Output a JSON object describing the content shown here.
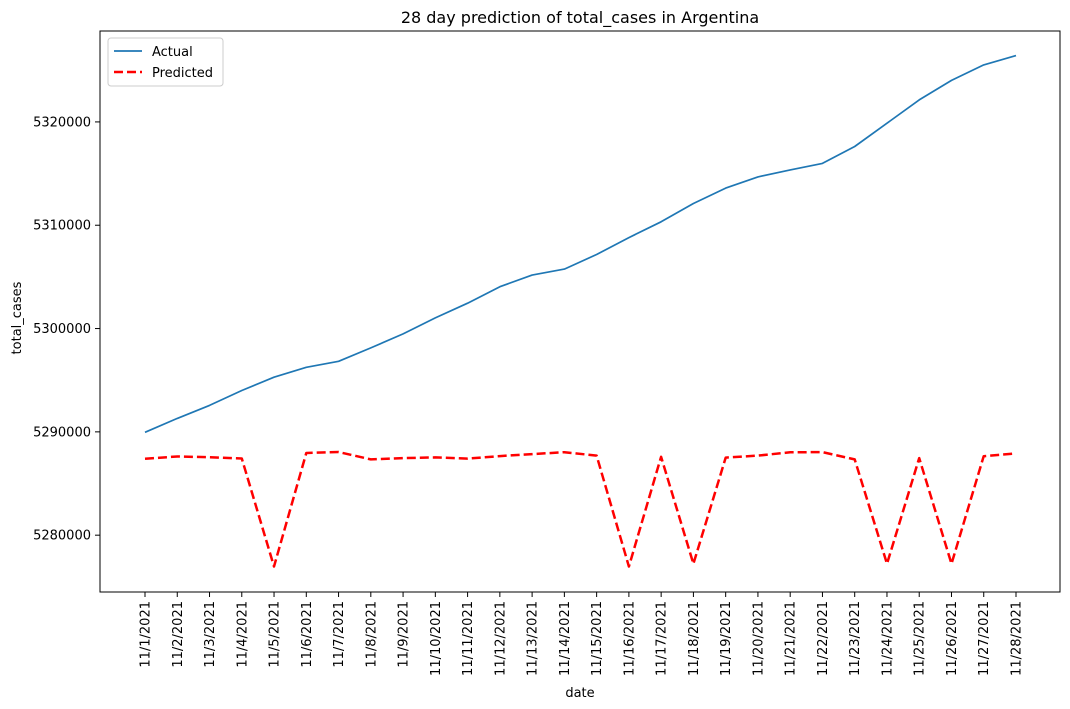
{
  "chart_data": {
    "type": "line",
    "title": "28 day prediction of total_cases in Argentina",
    "xlabel": "date",
    "ylabel": "total_cases",
    "x": [
      "11/1/2021",
      "11/2/2021",
      "11/3/2021",
      "11/4/2021",
      "11/5/2021",
      "11/6/2021",
      "11/7/2021",
      "11/8/2021",
      "11/9/2021",
      "11/10/2021",
      "11/11/2021",
      "11/12/2021",
      "11/13/2021",
      "11/14/2021",
      "11/15/2021",
      "11/16/2021",
      "11/17/2021",
      "11/18/2021",
      "11/19/2021",
      "11/20/2021",
      "11/21/2021",
      "11/22/2021",
      "11/23/2021",
      "11/24/2021",
      "11/25/2021",
      "11/26/2021",
      "11/27/2021",
      "11/28/2021"
    ],
    "ylim": [
      5274500,
      5328800
    ],
    "yticks": [
      5280000,
      5290000,
      5300000,
      5310000,
      5320000
    ],
    "ytick_labels": [
      "5280000",
      "5290000",
      "5300000",
      "5310000",
      "5320000"
    ],
    "grid": false,
    "legend_position": "upper-left",
    "series": [
      {
        "name": "Actual",
        "color": "#1f77b4",
        "style": "solid",
        "values": [
          5289960,
          5291300,
          5292560,
          5294000,
          5295290,
          5296250,
          5296830,
          5298130,
          5299480,
          5301030,
          5302450,
          5304050,
          5305170,
          5305750,
          5307170,
          5308800,
          5310330,
          5312100,
          5313590,
          5314680,
          5315360,
          5315980,
          5317620,
          5319880,
          5322130,
          5324020,
          5325520,
          5326420
        ]
      },
      {
        "name": "Predicted",
        "color": "#ff0000",
        "style": "dashed",
        "values": [
          5287400,
          5287620,
          5287550,
          5287420,
          5276970,
          5287950,
          5288050,
          5287330,
          5287460,
          5287530,
          5287410,
          5287650,
          5287850,
          5288030,
          5287700,
          5276970,
          5287590,
          5277230,
          5287510,
          5287700,
          5288020,
          5288040,
          5287330,
          5277230,
          5287460,
          5277230,
          5287640,
          5287920
        ]
      }
    ]
  }
}
